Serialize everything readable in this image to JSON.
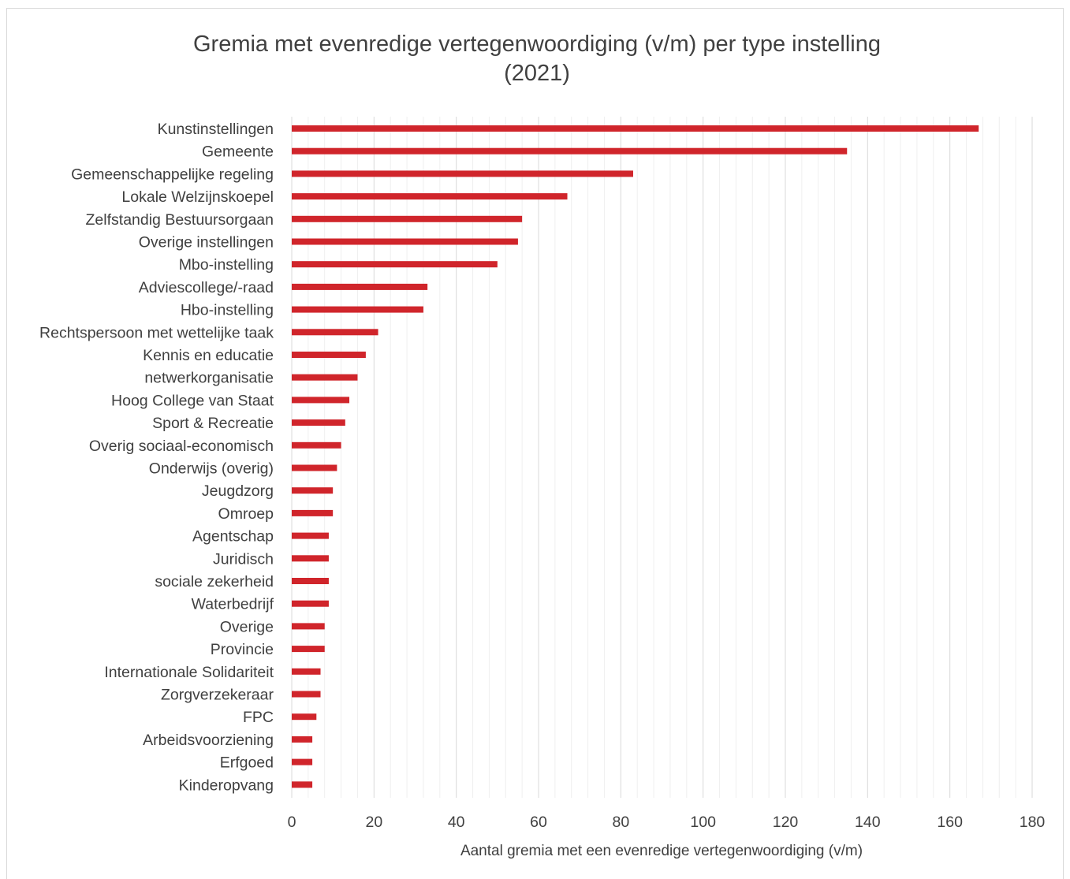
{
  "chart_data": {
    "type": "bar",
    "orientation": "horizontal",
    "title": "Gremia met evenredige vertegenwoordiging (v/m) per type instelling\n(2021)",
    "xlabel": "Aantal gremia met een evenredige vertegenwoordiging (v/m)",
    "ylabel": "",
    "xlim": [
      0,
      180
    ],
    "xticks": [
      "0",
      "20",
      "40",
      "60",
      "80",
      "100",
      "120",
      "140",
      "160",
      "180"
    ],
    "grid": true,
    "bar_color": "#d0252b",
    "categories": [
      "Kunstinstellingen",
      "Gemeente",
      "Gemeenschappelijke regeling",
      "Lokale Welzijnskoepel",
      "Zelfstandig Bestuursorgaan",
      "Overige instellingen",
      "Mbo-instelling",
      "Adviescollege/-raad",
      "Hbo-instelling",
      "Rechtspersoon met wettelijke taak",
      "Kennis en educatie",
      "netwerkorganisatie",
      "Hoog College van Staat",
      "Sport & Recreatie",
      "Overig sociaal-economisch",
      "Onderwijs (overig)",
      "Jeugdzorg",
      "Omroep",
      "Agentschap",
      "Juridisch",
      "sociale zekerheid",
      "Waterbedrijf",
      "Overige",
      "Provincie",
      "Internationale Solidariteit",
      "Zorgverzekeraar",
      "FPC",
      "Arbeidsvoorziening",
      "Erfgoed",
      "Kinderopvang"
    ],
    "values": [
      167,
      135,
      83,
      67,
      56,
      55,
      50,
      33,
      32,
      21,
      18,
      16,
      14,
      13,
      12,
      11,
      10,
      10,
      9,
      9,
      9,
      9,
      8,
      8,
      7,
      7,
      6,
      5,
      5,
      5
    ]
  }
}
